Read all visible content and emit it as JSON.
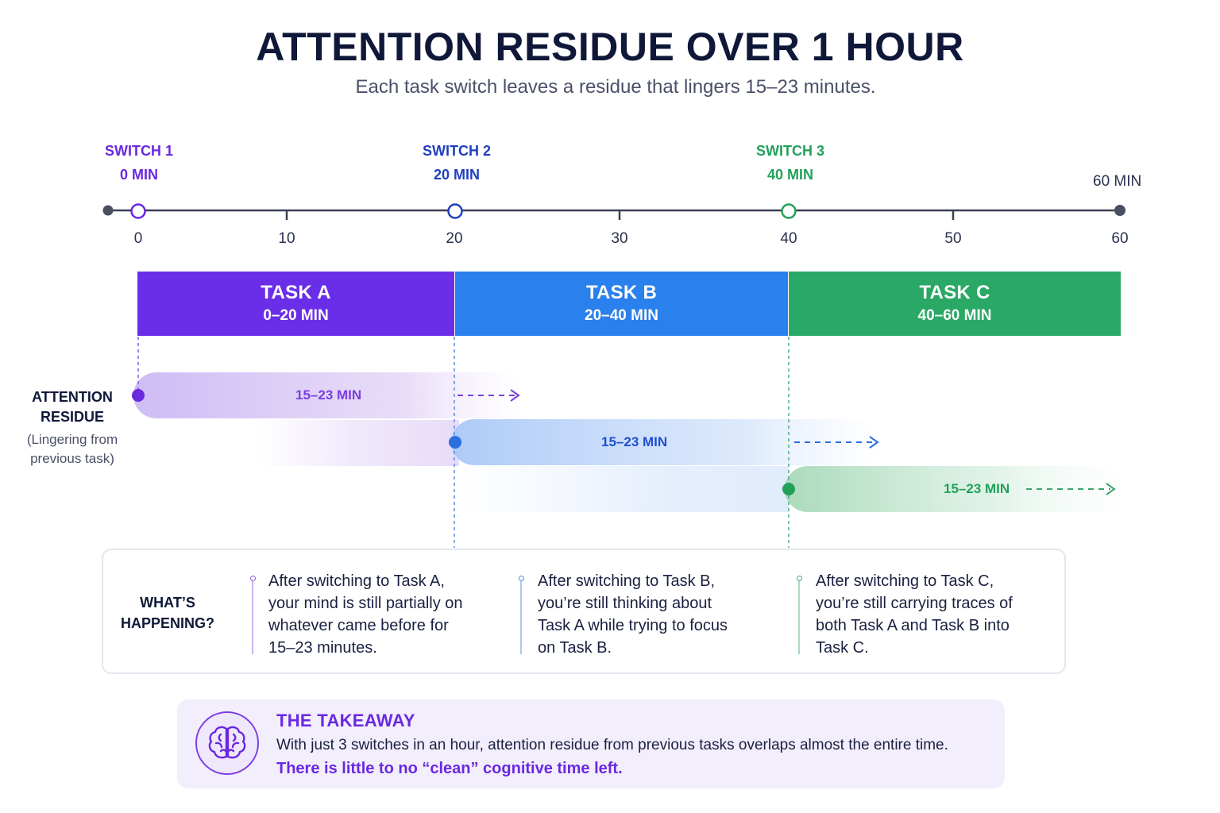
{
  "title": "ATTENTION RESIDUE OVER 1 HOUR",
  "subtitle": "Each task switch leaves a residue that lingers 15–23 minutes.",
  "axis": {
    "ticks": [
      "0",
      "10",
      "20",
      "30",
      "40",
      "50",
      "60"
    ],
    "end_label": "60 MIN"
  },
  "switches": [
    {
      "name": "SWITCH 1",
      "time": "0 MIN",
      "color": "#6a28e0"
    },
    {
      "name": "SWITCH 2",
      "time": "20 MIN",
      "color": "#1f3fbf"
    },
    {
      "name": "SWITCH 3",
      "time": "40 MIN",
      "color": "#22a05a"
    }
  ],
  "tasks": [
    {
      "name": "TASK A",
      "range": "0–20 MIN",
      "color": "#6a2ee8"
    },
    {
      "name": "TASK B",
      "range": "20–40 MIN",
      "color": "#2a80ec"
    },
    {
      "name": "TASK C",
      "range": "40–60 MIN",
      "color": "#2aa865"
    }
  ],
  "residue": {
    "side_title": "ATTENTION RESIDUE",
    "side_sub": "(Lingering from previous task)",
    "bands": [
      {
        "label": "15–23 MIN",
        "color": "#6a28e0"
      },
      {
        "label": "15–23 MIN",
        "color": "#1f4fd0"
      },
      {
        "label": "15–23 MIN",
        "color": "#22a05a"
      }
    ]
  },
  "happening": {
    "title": "WHAT’S HAPPENING?",
    "notes": [
      {
        "text": "After switching to Task A, your mind is still partially on whatever came before for 15–23 minutes.",
        "color": "#8a5ae8"
      },
      {
        "text": "After switching to Task B, you’re still thinking about Task A while trying to focus on Task B.",
        "color": "#4a90e0"
      },
      {
        "text": "After switching to Task C, you’re still carrying traces of both Task A and Task B into Task C.",
        "color": "#3ab070"
      }
    ]
  },
  "takeaway": {
    "icon": "brain-icon",
    "title": "THE TAKEAWAY",
    "body": "With just 3 switches in an hour, attention residue from previous tasks overlaps almost the entire time.",
    "emphasis": "There is little to no “clean” cognitive time left."
  }
}
